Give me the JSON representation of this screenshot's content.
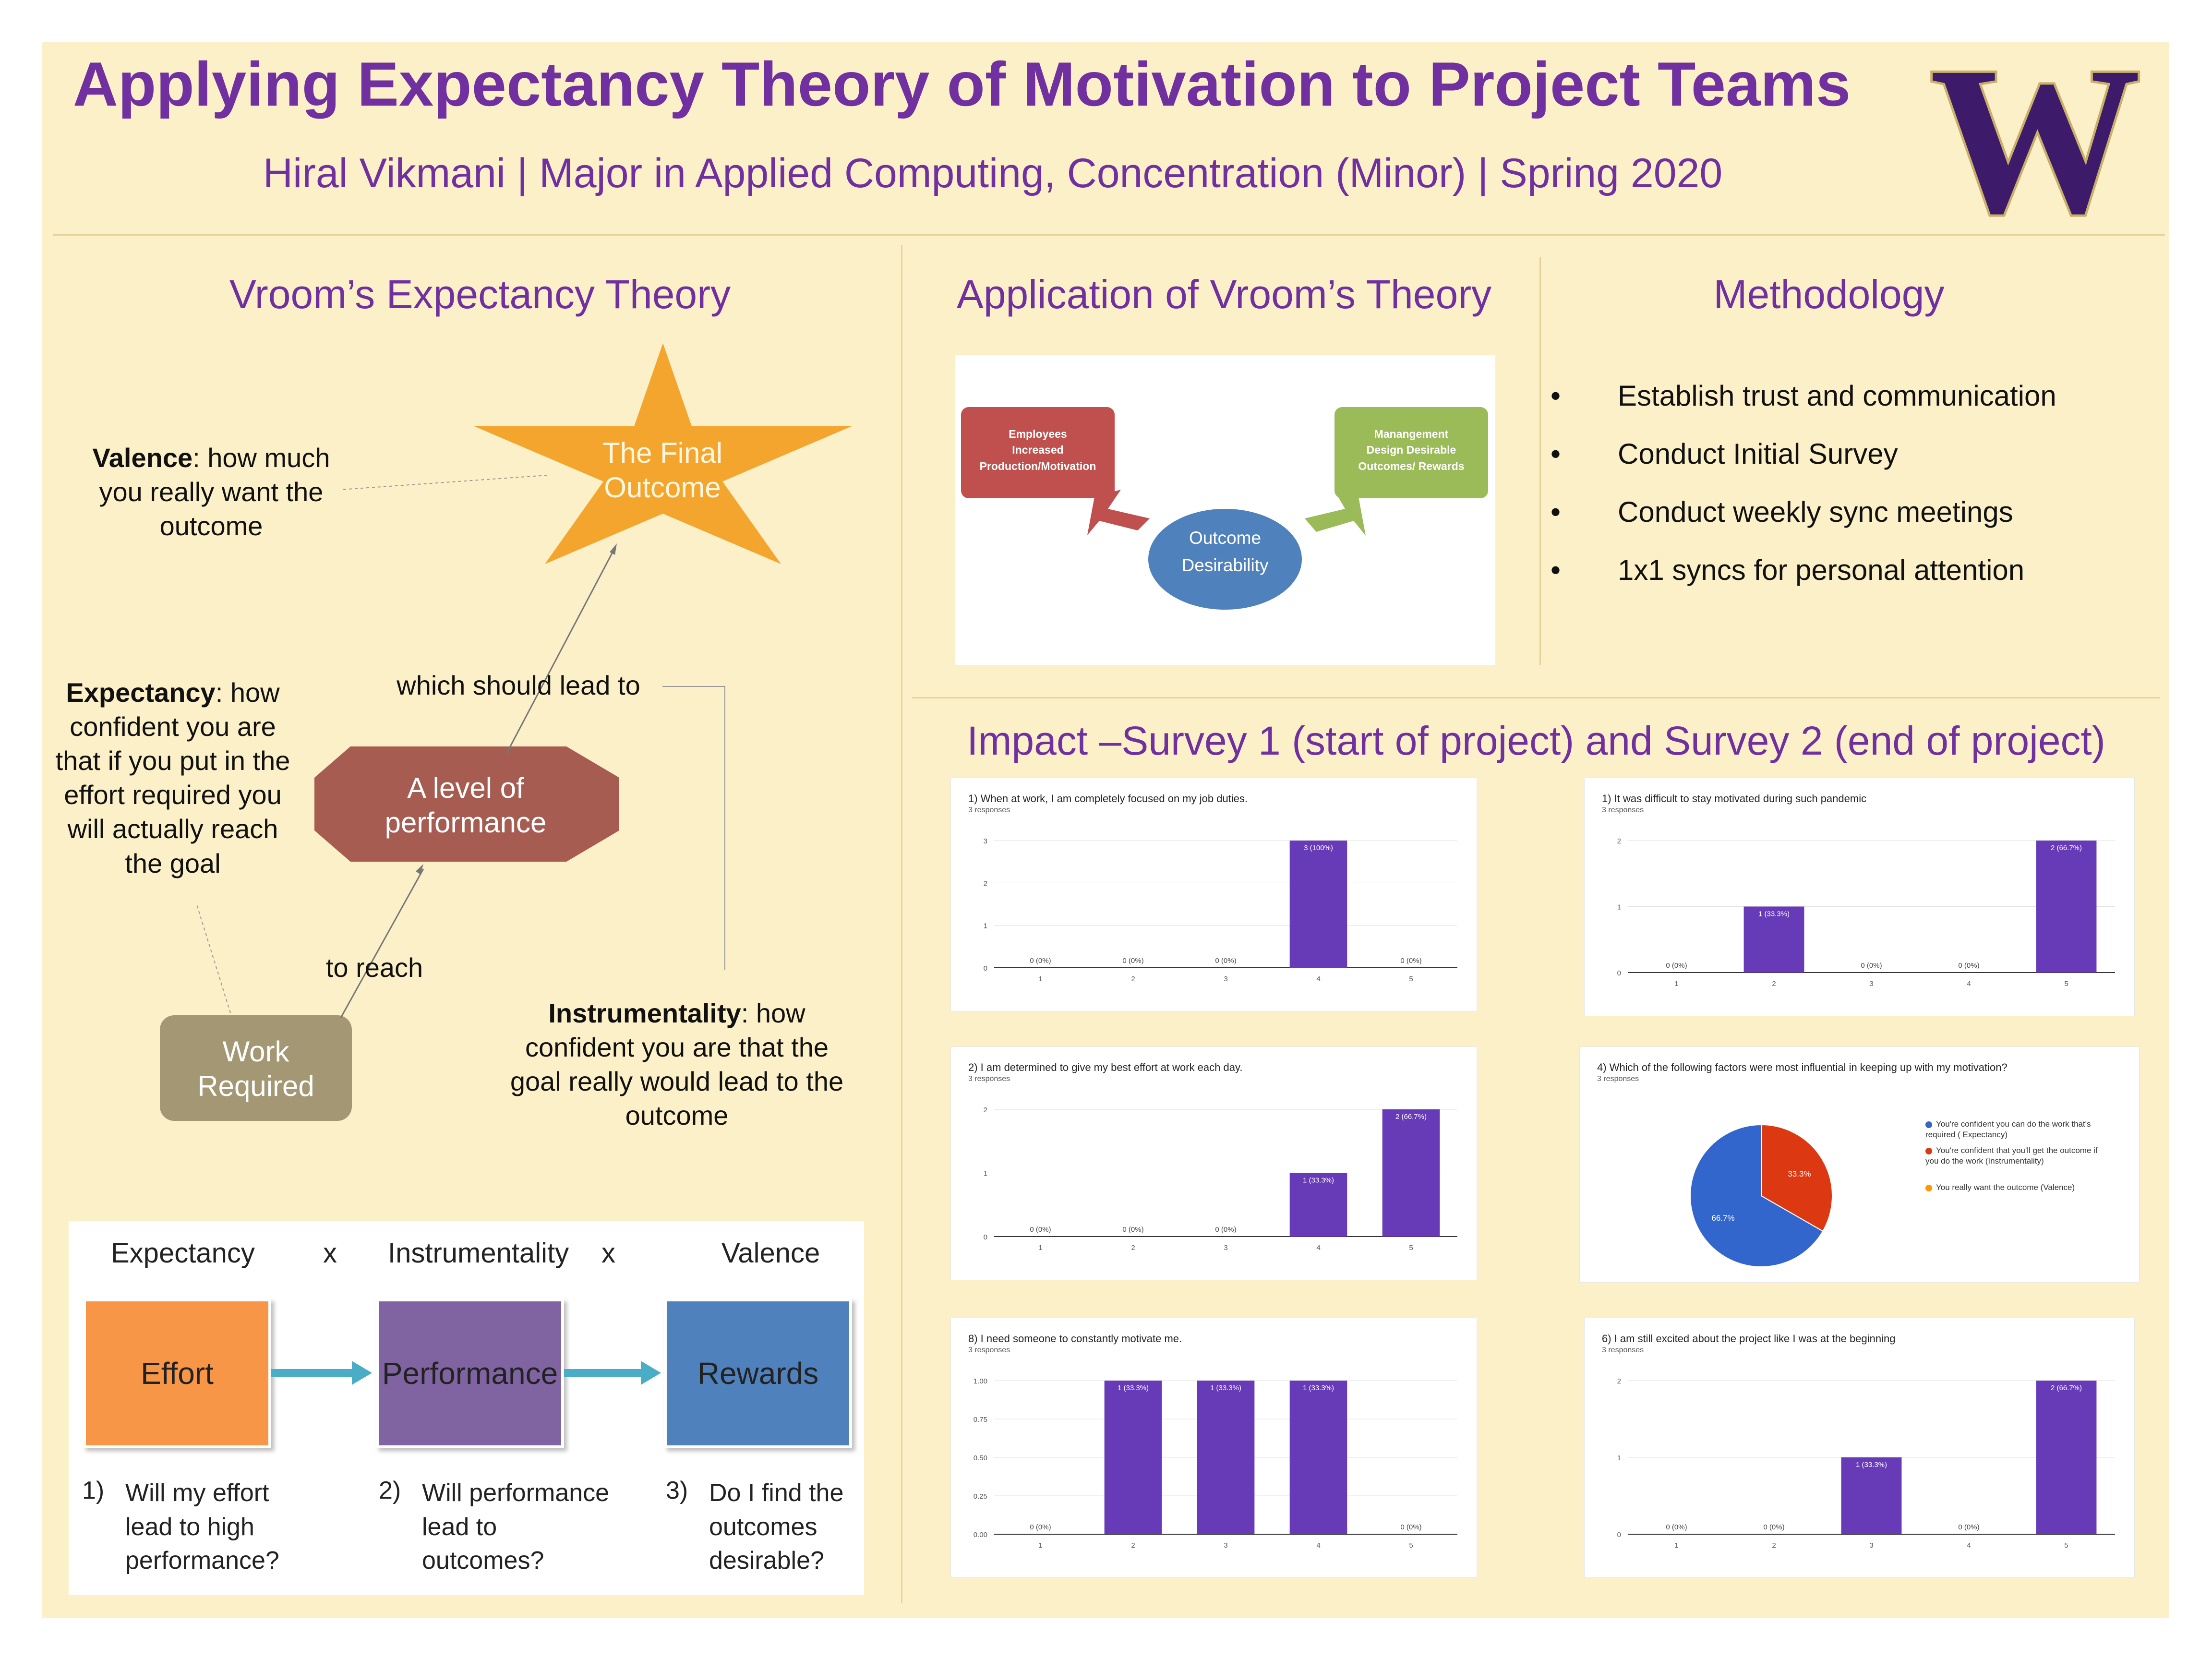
{
  "header": {
    "title": "Applying Expectancy Theory of Motivation to Project Teams",
    "subtitle": "Hiral Vikmani | Major in Applied Computing, Concentration (Minor) | Spring 2020",
    "logo_letter": "W",
    "colors": {
      "purple": "#7030a0",
      "background": "#fcf0c9",
      "logo_purple": "#3e1a6b",
      "logo_gold": "#c8b06a"
    }
  },
  "vroom": {
    "title": "Vroom’s Expectancy Theory",
    "star_label": "The Final Outcome",
    "octagon_label": "A level of performance",
    "work_label": "Work Required",
    "which_should_lead_to": "which should lead to",
    "to_reach": "to reach",
    "valence": {
      "term": "Valence",
      "text": ": how much you really want the outcome"
    },
    "expectancy": {
      "term": "Expectancy",
      "text": ": how confident you are that if you put in the effort required you will actually reach the goal"
    },
    "instrumentality": {
      "term": "Instrumentality",
      "text": ": how confident you are that the goal really would lead to the outcome"
    }
  },
  "equation": {
    "headers": [
      "Expectancy",
      "x",
      "Instrumentality",
      "x",
      "Valence"
    ],
    "boxes": [
      {
        "label": "Effort",
        "color": "#f79646"
      },
      {
        "label": "Performance",
        "color": "#8064a2"
      },
      {
        "label": "Rewards",
        "color": "#4f81bd"
      }
    ],
    "questions": [
      {
        "num": "1)",
        "text": "Will my effort\nlead to high\nperformance?"
      },
      {
        "num": "2)",
        "text": "Will performance\nlead to\noutcomes?"
      },
      {
        "num": "3)",
        "text": "Do I find the\noutcomes\ndesirable?"
      }
    ]
  },
  "application": {
    "title": "Application of Vroom’s Theory",
    "employees": "Employees\nIncreased\nProduction/Motivation",
    "management": "Manangement\nDesign Desirable\nOutcomes/ Rewards",
    "outcome": "Outcome\nDesirability",
    "colors": {
      "red": "#c0504d",
      "green": "#9bbb59",
      "blue": "#4f81bd"
    }
  },
  "methodology": {
    "title": "Methodology",
    "items": [
      "Establish trust and communication",
      "Conduct Initial Survey",
      "Conduct weekly sync meetings",
      "1x1 syncs for personal attention"
    ]
  },
  "impact": {
    "title": "Impact –Survey 1 (start of project) and Survey 2 (end of project)"
  },
  "chart_data": [
    {
      "type": "bar",
      "title": "1) When at work, I am completely focused on my job duties.",
      "responses": "3 responses",
      "categories": [
        "1",
        "2",
        "3",
        "4",
        "5"
      ],
      "values": [
        0,
        0,
        0,
        3,
        0
      ],
      "labels": [
        "0 (0%)",
        "0 (0%)",
        "0 (0%)",
        "3 (100%)",
        "0 (0%)"
      ],
      "yticks": [
        "0",
        "1",
        "2",
        "3"
      ],
      "ylim": [
        0,
        3
      ],
      "color": "#673ab7"
    },
    {
      "type": "bar",
      "title": "1) It was difficult to stay motivated during such pandemic",
      "responses": "3 responses",
      "categories": [
        "1",
        "2",
        "3",
        "4",
        "5"
      ],
      "values": [
        0,
        1,
        0,
        0,
        2
      ],
      "labels": [
        "0 (0%)",
        "1 (33.3%)",
        "0 (0%)",
        "0 (0%)",
        "2 (66.7%)"
      ],
      "yticks": [
        "0",
        "1",
        "2"
      ],
      "ylim": [
        0,
        2
      ],
      "color": "#673ab7"
    },
    {
      "type": "bar",
      "title": "2) I am determined to give my best effort at work each day.",
      "responses": "3 responses",
      "categories": [
        "1",
        "2",
        "3",
        "4",
        "5"
      ],
      "values": [
        0,
        0,
        0,
        1,
        2
      ],
      "labels": [
        "0 (0%)",
        "0 (0%)",
        "0 (0%)",
        "1 (33.3%)",
        "2 (66.7%)"
      ],
      "yticks": [
        "0",
        "1",
        "2"
      ],
      "ylim": [
        0,
        2
      ],
      "color": "#673ab7"
    },
    {
      "type": "pie",
      "title": "4) Which of the following factors were most influential in keeping up with my motivation?",
      "responses": "3 responses",
      "slices": [
        {
          "label": "You're confident you can do the work that's required ( Expectancy)",
          "value": 66.7,
          "text": "66.7%",
          "color": "#3366cc"
        },
        {
          "label": "You're confident that you'll get the outcome if you do the work (Instrumentality)",
          "value": 33.3,
          "text": "33.3%",
          "color": "#dc3912"
        },
        {
          "label": "You really want the outcome (Valence)",
          "value": 0,
          "text": "",
          "color": "#ff9900"
        }
      ]
    },
    {
      "type": "bar",
      "title": "8)    I need someone to constantly motivate me.",
      "responses": "3 responses",
      "categories": [
        "1",
        "2",
        "3",
        "4",
        "5"
      ],
      "values": [
        0,
        1,
        1,
        1,
        0
      ],
      "labels": [
        "0 (0%)",
        "1 (33.3%)",
        "1 (33.3%)",
        "1 (33.3%)",
        "0 (0%)"
      ],
      "yticks": [
        "0.00",
        "0.25",
        "0.50",
        "0.75",
        "1.00"
      ],
      "ylim": [
        0,
        1
      ],
      "color": "#673ab7"
    },
    {
      "type": "bar",
      "title": "6) I am still excited about the project like I was at the beginning",
      "responses": "3 responses",
      "categories": [
        "1",
        "2",
        "3",
        "4",
        "5"
      ],
      "values": [
        0,
        0,
        1,
        0,
        2
      ],
      "labels": [
        "0 (0%)",
        "0 (0%)",
        "1 (33.3%)",
        "0 (0%)",
        "2 (66.7%)"
      ],
      "yticks": [
        "0",
        "1",
        "2"
      ],
      "ylim": [
        0,
        2
      ],
      "color": "#673ab7"
    }
  ]
}
